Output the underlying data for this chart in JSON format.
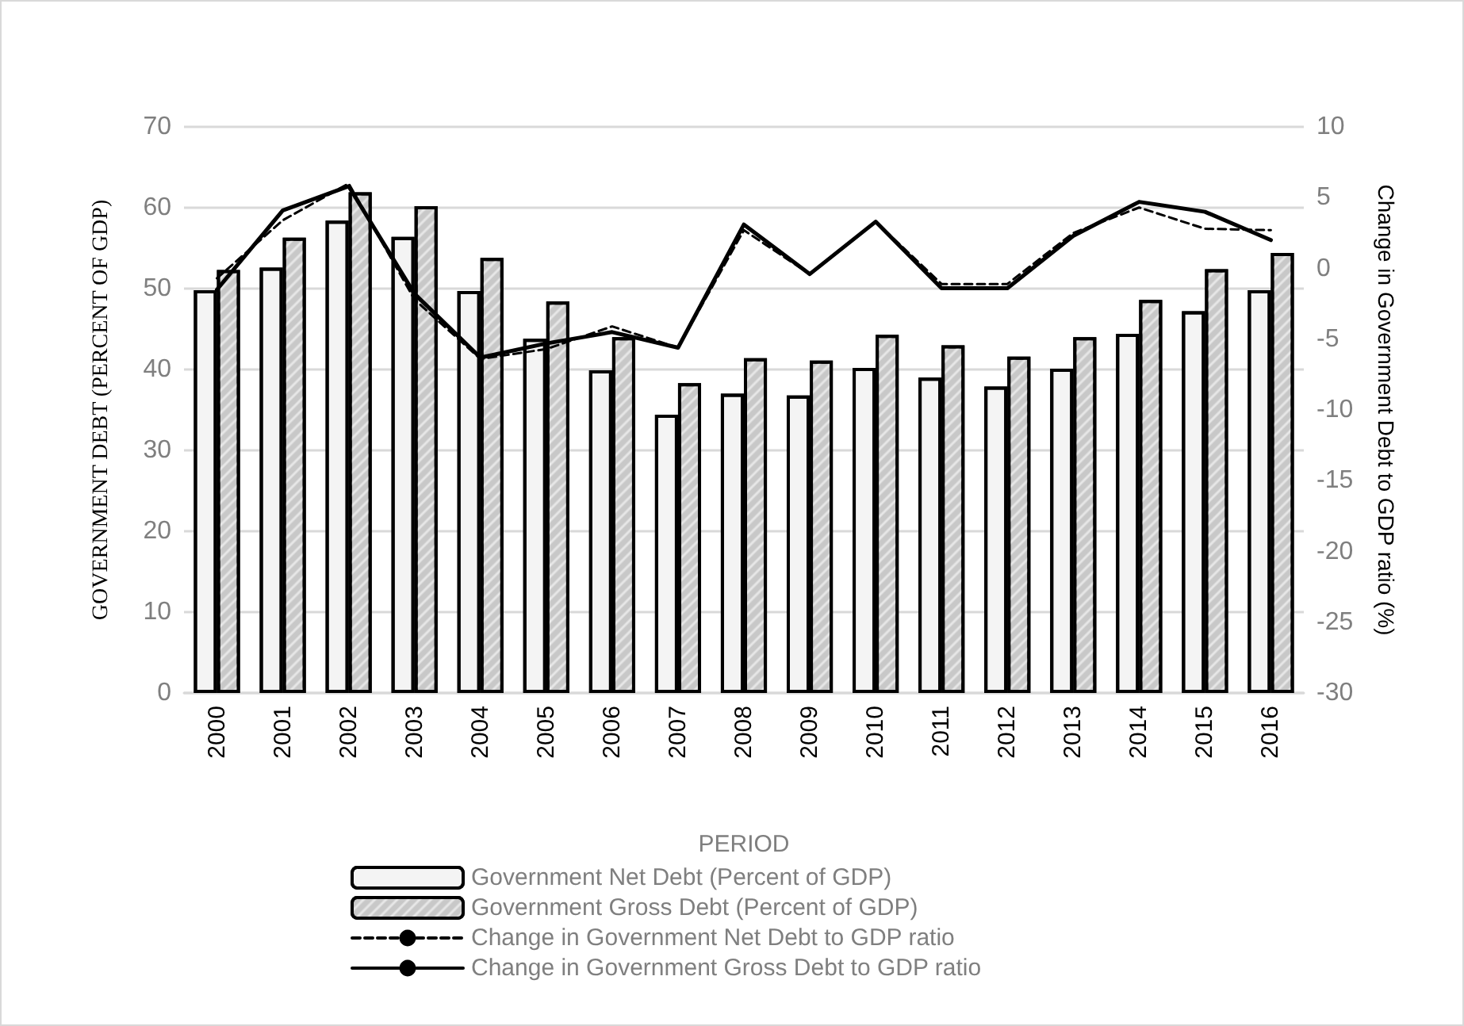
{
  "chart_data": {
    "type": "bar",
    "xlabel": "PERIOD",
    "ylabel": "GOVERNMENT DEBT (PERCENT OF GDP)",
    "y2label": "Change in Government Debt to GDP ratio (%)",
    "categories": [
      "2000",
      "2001",
      "2002",
      "2003",
      "2004",
      "2005",
      "2006",
      "2007",
      "2008",
      "2009",
      "2010",
      "2011",
      "2012",
      "2013",
      "2014",
      "2015",
      "2016"
    ],
    "series": [
      {
        "name": "Government Net Debt (Percent of GDP)",
        "color": "#f4f4f4",
        "values": [
          49.8,
          52.6,
          58.4,
          56.4,
          49.7,
          43.8,
          39.9,
          34.4,
          37.0,
          36.8,
          40.2,
          39.0,
          37.9,
          40.1,
          44.4,
          47.2,
          49.8
        ]
      },
      {
        "name": "Government Gross Debt (Percent of GDP)",
        "color": "#c8c8c8",
        "values": [
          52.3,
          56.3,
          61.9,
          60.2,
          53.8,
          48.4,
          44.0,
          38.3,
          41.4,
          41.1,
          44.3,
          43.0,
          41.6,
          44.0,
          48.6,
          52.4,
          54.4
        ]
      },
      {
        "name": "Change in Government Net Debt to GDP ratio",
        "type": "line",
        "axis": "y2",
        "color": "#000000",
        "line_style": "dashed",
        "values": [
          -0.7,
          3.4,
          6.0,
          -2.2,
          -6.4,
          -5.7,
          -4.1,
          -5.6,
          2.7,
          -0.4,
          3.3,
          -1.1,
          -1.1,
          2.5,
          4.3,
          2.8,
          2.7
        ]
      },
      {
        "name": "Change in Government Gross Debt to GDP ratio",
        "type": "line",
        "axis": "y2",
        "color": "#000000",
        "line_style": "solid",
        "values": [
          -1.5,
          4.1,
          5.8,
          -1.8,
          -6.3,
          -5.3,
          -4.5,
          -5.6,
          3.1,
          -0.4,
          3.3,
          -1.4,
          -1.4,
          2.3,
          4.7,
          4.0,
          2.0
        ]
      }
    ],
    "ylim": [
      0,
      70
    ],
    "yticks": [
      0,
      10,
      20,
      30,
      40,
      50,
      60,
      70
    ],
    "y2lim": [
      -30,
      10
    ],
    "y2ticks": [
      -30,
      -25,
      -20,
      -15,
      -10,
      -5,
      0,
      5,
      10
    ],
    "grid": "y",
    "legend": "bottom",
    "marker": "none"
  }
}
